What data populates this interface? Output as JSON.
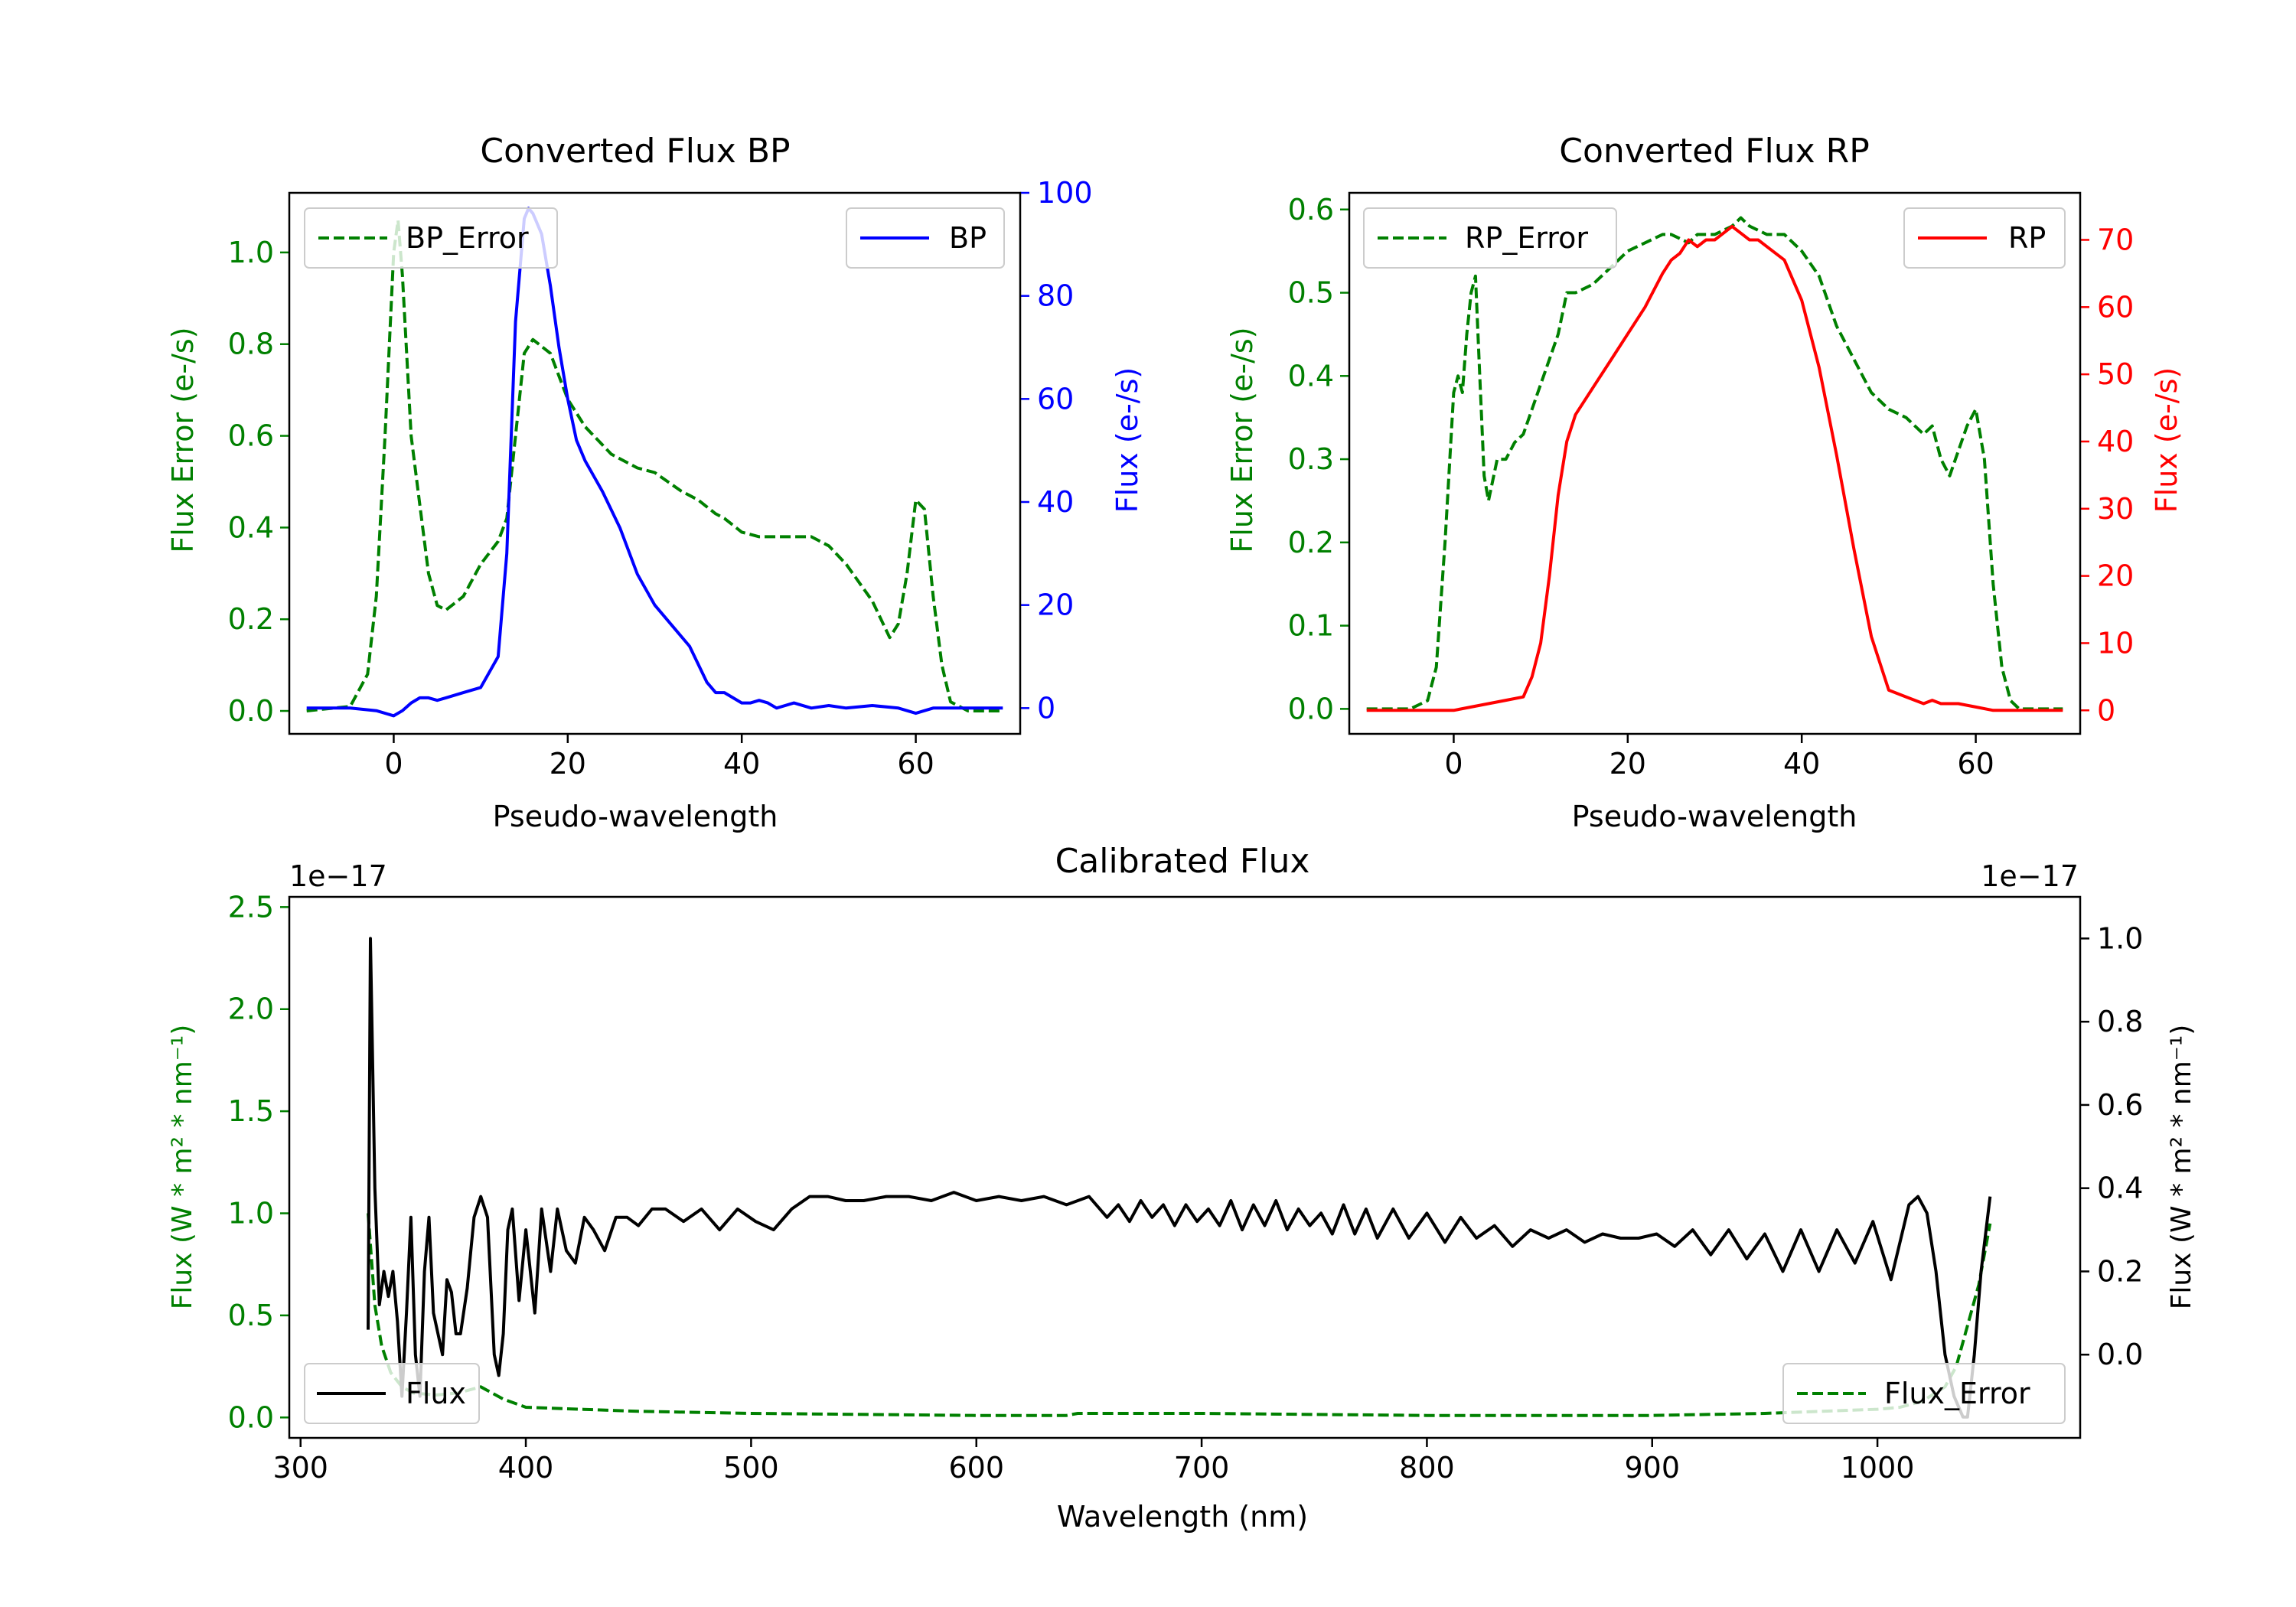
{
  "colors": {
    "bp": "#0000ff",
    "rp": "#ff0000",
    "err": "#008000",
    "flux": "#000000"
  },
  "chart_data": [
    {
      "id": "bp",
      "type": "line",
      "title": "Converted Flux BP",
      "xlabel": "Pseudo-wavelength",
      "xlim": [
        -12,
        72
      ],
      "xticks": [
        0,
        20,
        40,
        60
      ],
      "left_axis": {
        "label": "Flux Error (e-/s)",
        "ylim": [
          -0.05,
          1.13
        ],
        "ticks": [
          0.0,
          0.2,
          0.4,
          0.6,
          0.8,
          1.0
        ],
        "tick_labels": [
          "0.0",
          "0.2",
          "0.4",
          "0.6",
          "0.8",
          "1.0"
        ]
      },
      "right_axis": {
        "label": "Flux (e-/s)",
        "ylim": [
          -5,
          100
        ],
        "ticks": [
          0,
          20,
          40,
          60,
          80,
          100
        ],
        "tick_labels": [
          "0",
          "20",
          "40",
          "60",
          "80",
          "100"
        ]
      },
      "legend_left": {
        "label": "BP_Error",
        "placement": "upper-left"
      },
      "legend_right": {
        "label": "BP",
        "placement": "upper-right"
      },
      "series": [
        {
          "name": "BP_Error",
          "axis": "left",
          "style": "dashed",
          "x": [
            -10,
            -5,
            -3,
            -2,
            -1,
            0,
            0.5,
            1,
            2,
            3,
            4,
            5,
            6,
            8,
            10,
            12,
            13,
            14,
            15,
            16,
            18,
            20,
            22,
            25,
            28,
            30,
            33,
            35,
            37,
            38,
            40,
            42,
            45,
            48,
            50,
            52,
            55,
            57,
            58,
            59,
            60,
            61,
            62,
            63,
            64,
            66,
            70
          ],
          "y": [
            0,
            0.01,
            0.08,
            0.25,
            0.6,
            1.0,
            1.07,
            0.95,
            0.6,
            0.45,
            0.3,
            0.23,
            0.22,
            0.25,
            0.32,
            0.37,
            0.42,
            0.6,
            0.78,
            0.81,
            0.78,
            0.68,
            0.62,
            0.56,
            0.53,
            0.52,
            0.48,
            0.46,
            0.43,
            0.42,
            0.39,
            0.38,
            0.38,
            0.38,
            0.36,
            0.32,
            0.24,
            0.16,
            0.19,
            0.3,
            0.46,
            0.44,
            0.25,
            0.1,
            0.02,
            0,
            0
          ]
        },
        {
          "name": "BP",
          "axis": "right",
          "style": "solid",
          "x": [
            -10,
            -5,
            -2,
            0,
            1,
            2,
            3,
            4,
            5,
            6,
            8,
            10,
            12,
            13,
            14,
            15,
            15.5,
            16,
            17,
            18,
            19,
            20,
            21,
            22,
            23,
            24,
            26,
            28,
            30,
            32,
            34,
            36,
            37,
            38,
            40,
            41,
            42,
            43,
            44,
            46,
            48,
            50,
            52,
            55,
            58,
            60,
            62,
            65,
            70
          ],
          "y": [
            0,
            0,
            -0.5,
            -1.5,
            -0.5,
            1,
            2,
            2,
            1.5,
            2,
            3,
            4,
            10,
            30,
            75,
            95,
            97,
            96,
            92,
            82,
            70,
            60,
            52,
            48,
            45,
            42,
            35,
            26,
            20,
            16,
            12,
            5,
            3,
            3,
            1,
            1,
            1.5,
            1,
            0,
            1,
            0,
            0.5,
            0,
            0.5,
            0,
            -1,
            0,
            0,
            0
          ]
        }
      ]
    },
    {
      "id": "rp",
      "type": "line",
      "title": "Converted Flux RP",
      "xlabel": "Pseudo-wavelength",
      "xlim": [
        -12,
        72
      ],
      "xticks": [
        0,
        20,
        40,
        60
      ],
      "left_axis": {
        "label": "Flux Error (e-/s)",
        "ylim": [
          -0.03,
          0.62
        ],
        "ticks": [
          0.0,
          0.1,
          0.2,
          0.3,
          0.4,
          0.5,
          0.6
        ],
        "tick_labels": [
          "0.0",
          "0.1",
          "0.2",
          "0.3",
          "0.4",
          "0.5",
          "0.6"
        ]
      },
      "right_axis": {
        "label": "Flux (e-/s)",
        "ylim": [
          -3.5,
          77
        ],
        "ticks": [
          0,
          10,
          20,
          30,
          40,
          50,
          60,
          70
        ],
        "tick_labels": [
          "0",
          "10",
          "20",
          "30",
          "40",
          "50",
          "60",
          "70"
        ]
      },
      "legend_left": {
        "label": "RP_Error",
        "placement": "upper-left"
      },
      "legend_right": {
        "label": "RP",
        "placement": "upper-right"
      },
      "series": [
        {
          "name": "RP_Error",
          "axis": "left",
          "style": "dashed",
          "x": [
            -10,
            -5,
            -3,
            -2,
            -1,
            0,
            0.5,
            1,
            1.5,
            2,
            2.5,
            3,
            3.5,
            4,
            5,
            6,
            7,
            8,
            10,
            12,
            13,
            14,
            16,
            18,
            20,
            22,
            24,
            25,
            27,
            28,
            30,
            32,
            33,
            34,
            36,
            38,
            40,
            42,
            44,
            46,
            48,
            50,
            52,
            54,
            55,
            56,
            57,
            58,
            59,
            60,
            61,
            62,
            63,
            64,
            65,
            70
          ],
          "y": [
            0,
            0,
            0.01,
            0.05,
            0.2,
            0.38,
            0.4,
            0.38,
            0.45,
            0.5,
            0.52,
            0.4,
            0.28,
            0.25,
            0.3,
            0.3,
            0.32,
            0.33,
            0.39,
            0.45,
            0.5,
            0.5,
            0.51,
            0.53,
            0.55,
            0.56,
            0.57,
            0.57,
            0.56,
            0.57,
            0.57,
            0.58,
            0.59,
            0.58,
            0.57,
            0.57,
            0.55,
            0.52,
            0.46,
            0.42,
            0.38,
            0.36,
            0.35,
            0.33,
            0.34,
            0.3,
            0.28,
            0.31,
            0.34,
            0.36,
            0.3,
            0.15,
            0.05,
            0.01,
            0,
            0
          ]
        },
        {
          "name": "RP",
          "axis": "right",
          "style": "solid",
          "x": [
            -10,
            -5,
            -2,
            0,
            2,
            4,
            6,
            8,
            9,
            10,
            11,
            12,
            13,
            14,
            16,
            18,
            20,
            22,
            24,
            25,
            26,
            27,
            28,
            29,
            30,
            31,
            32,
            33,
            34,
            35,
            36,
            38,
            40,
            42,
            44,
            46,
            48,
            50,
            52,
            54,
            55,
            56,
            58,
            60,
            62,
            64,
            70
          ],
          "y": [
            0,
            0,
            0,
            0,
            0.5,
            1,
            1.5,
            2,
            5,
            10,
            20,
            32,
            40,
            44,
            48,
            52,
            56,
            60,
            65,
            67,
            68,
            70,
            69,
            70,
            70,
            71,
            72,
            71,
            70,
            70,
            69,
            67,
            61,
            51,
            38,
            24,
            11,
            3,
            2,
            1,
            1.5,
            1,
            1,
            0.5,
            0,
            0,
            0
          ]
        }
      ]
    },
    {
      "id": "cal",
      "type": "line",
      "title": "Calibrated Flux",
      "xlabel": "Wavelength (nm)",
      "xlim": [
        295,
        1090
      ],
      "xticks": [
        300,
        400,
        500,
        600,
        700,
        800,
        900,
        1000
      ],
      "left_axis": {
        "label": "Flux (W * m² * nm⁻¹)",
        "exponent": "1e−17",
        "ylim": [
          -0.1,
          2.55
        ],
        "ticks": [
          0.0,
          0.5,
          1.0,
          1.5,
          2.0,
          2.5
        ],
        "tick_labels": [
          "0.0",
          "0.5",
          "1.0",
          "1.5",
          "2.0",
          "2.5"
        ]
      },
      "right_axis": {
        "label": "Flux (W * m² * nm⁻¹)",
        "exponent": "1e−17",
        "ylim": [
          -0.2,
          1.1
        ],
        "ticks": [
          0.0,
          0.2,
          0.4,
          0.6,
          0.8,
          1.0
        ],
        "tick_labels": [
          "0.0",
          "0.2",
          "0.4",
          "0.6",
          "0.8",
          "1.0"
        ]
      },
      "legend_left": {
        "label": "Flux",
        "placement": "lower-left"
      },
      "legend_right": {
        "label": "Flux_Error",
        "placement": "lower-right"
      },
      "series": [
        {
          "name": "Flux_Error",
          "axis": "left",
          "style": "dashed",
          "x": [
            330,
            333,
            336,
            340,
            345,
            350,
            360,
            370,
            380,
            390,
            400,
            450,
            500,
            600,
            640,
            645,
            700,
            800,
            900,
            950,
            1000,
            1010,
            1020,
            1030,
            1035,
            1040,
            1045,
            1050
          ],
          "y": [
            1.0,
            0.55,
            0.35,
            0.22,
            0.15,
            0.12,
            0.11,
            0.12,
            0.15,
            0.09,
            0.05,
            0.03,
            0.02,
            0.01,
            0.01,
            0.02,
            0.02,
            0.01,
            0.01,
            0.02,
            0.04,
            0.05,
            0.08,
            0.15,
            0.25,
            0.45,
            0.65,
            0.95
          ]
        },
        {
          "name": "Flux",
          "axis": "right",
          "style": "solid",
          "x": [
            330,
            331,
            333,
            335,
            337,
            339,
            341,
            343,
            345,
            347,
            349,
            351,
            353,
            355,
            357,
            359,
            361,
            363,
            365,
            367,
            369,
            371,
            374,
            377,
            380,
            383,
            386,
            388,
            390,
            392,
            394,
            397,
            400,
            404,
            407,
            411,
            414,
            418,
            422,
            426,
            430,
            435,
            440,
            445,
            450,
            456,
            462,
            470,
            478,
            486,
            494,
            502,
            510,
            518,
            526,
            534,
            542,
            550,
            560,
            570,
            580,
            590,
            600,
            610,
            620,
            630,
            640,
            650,
            658,
            663,
            668,
            673,
            678,
            683,
            688,
            693,
            698,
            703,
            708,
            713,
            718,
            723,
            728,
            733,
            738,
            743,
            748,
            753,
            758,
            763,
            768,
            773,
            778,
            785,
            792,
            800,
            808,
            815,
            822,
            830,
            838,
            846,
            854,
            862,
            870,
            878,
            886,
            894,
            902,
            910,
            918,
            926,
            934,
            942,
            950,
            958,
            966,
            974,
            982,
            990,
            998,
            1006,
            1014,
            1018,
            1022,
            1026,
            1030,
            1034,
            1038,
            1040,
            1043,
            1046,
            1050
          ],
          "y": [
            0.06,
            1.0,
            0.4,
            0.12,
            0.2,
            0.14,
            0.2,
            0.08,
            -0.1,
            0.1,
            0.33,
            0.0,
            -0.1,
            0.2,
            0.33,
            0.1,
            0.05,
            0.0,
            0.18,
            0.15,
            0.05,
            0.05,
            0.16,
            0.33,
            0.38,
            0.33,
            0.0,
            -0.05,
            0.05,
            0.3,
            0.35,
            0.13,
            0.3,
            0.1,
            0.35,
            0.2,
            0.35,
            0.25,
            0.22,
            0.33,
            0.3,
            0.25,
            0.33,
            0.33,
            0.31,
            0.35,
            0.35,
            0.32,
            0.35,
            0.3,
            0.35,
            0.32,
            0.3,
            0.35,
            0.38,
            0.38,
            0.37,
            0.37,
            0.38,
            0.38,
            0.37,
            0.39,
            0.37,
            0.38,
            0.37,
            0.38,
            0.36,
            0.38,
            0.33,
            0.36,
            0.32,
            0.37,
            0.33,
            0.36,
            0.31,
            0.36,
            0.32,
            0.35,
            0.31,
            0.37,
            0.3,
            0.36,
            0.31,
            0.37,
            0.3,
            0.35,
            0.31,
            0.34,
            0.29,
            0.36,
            0.29,
            0.35,
            0.28,
            0.35,
            0.28,
            0.34,
            0.27,
            0.33,
            0.28,
            0.31,
            0.26,
            0.3,
            0.28,
            0.3,
            0.27,
            0.29,
            0.28,
            0.28,
            0.29,
            0.26,
            0.3,
            0.24,
            0.3,
            0.23,
            0.29,
            0.2,
            0.3,
            0.2,
            0.3,
            0.22,
            0.32,
            0.18,
            0.36,
            0.38,
            0.34,
            0.2,
            0.0,
            -0.1,
            -0.15,
            -0.15,
            0.0,
            0.2,
            0.38
          ]
        }
      ]
    }
  ]
}
